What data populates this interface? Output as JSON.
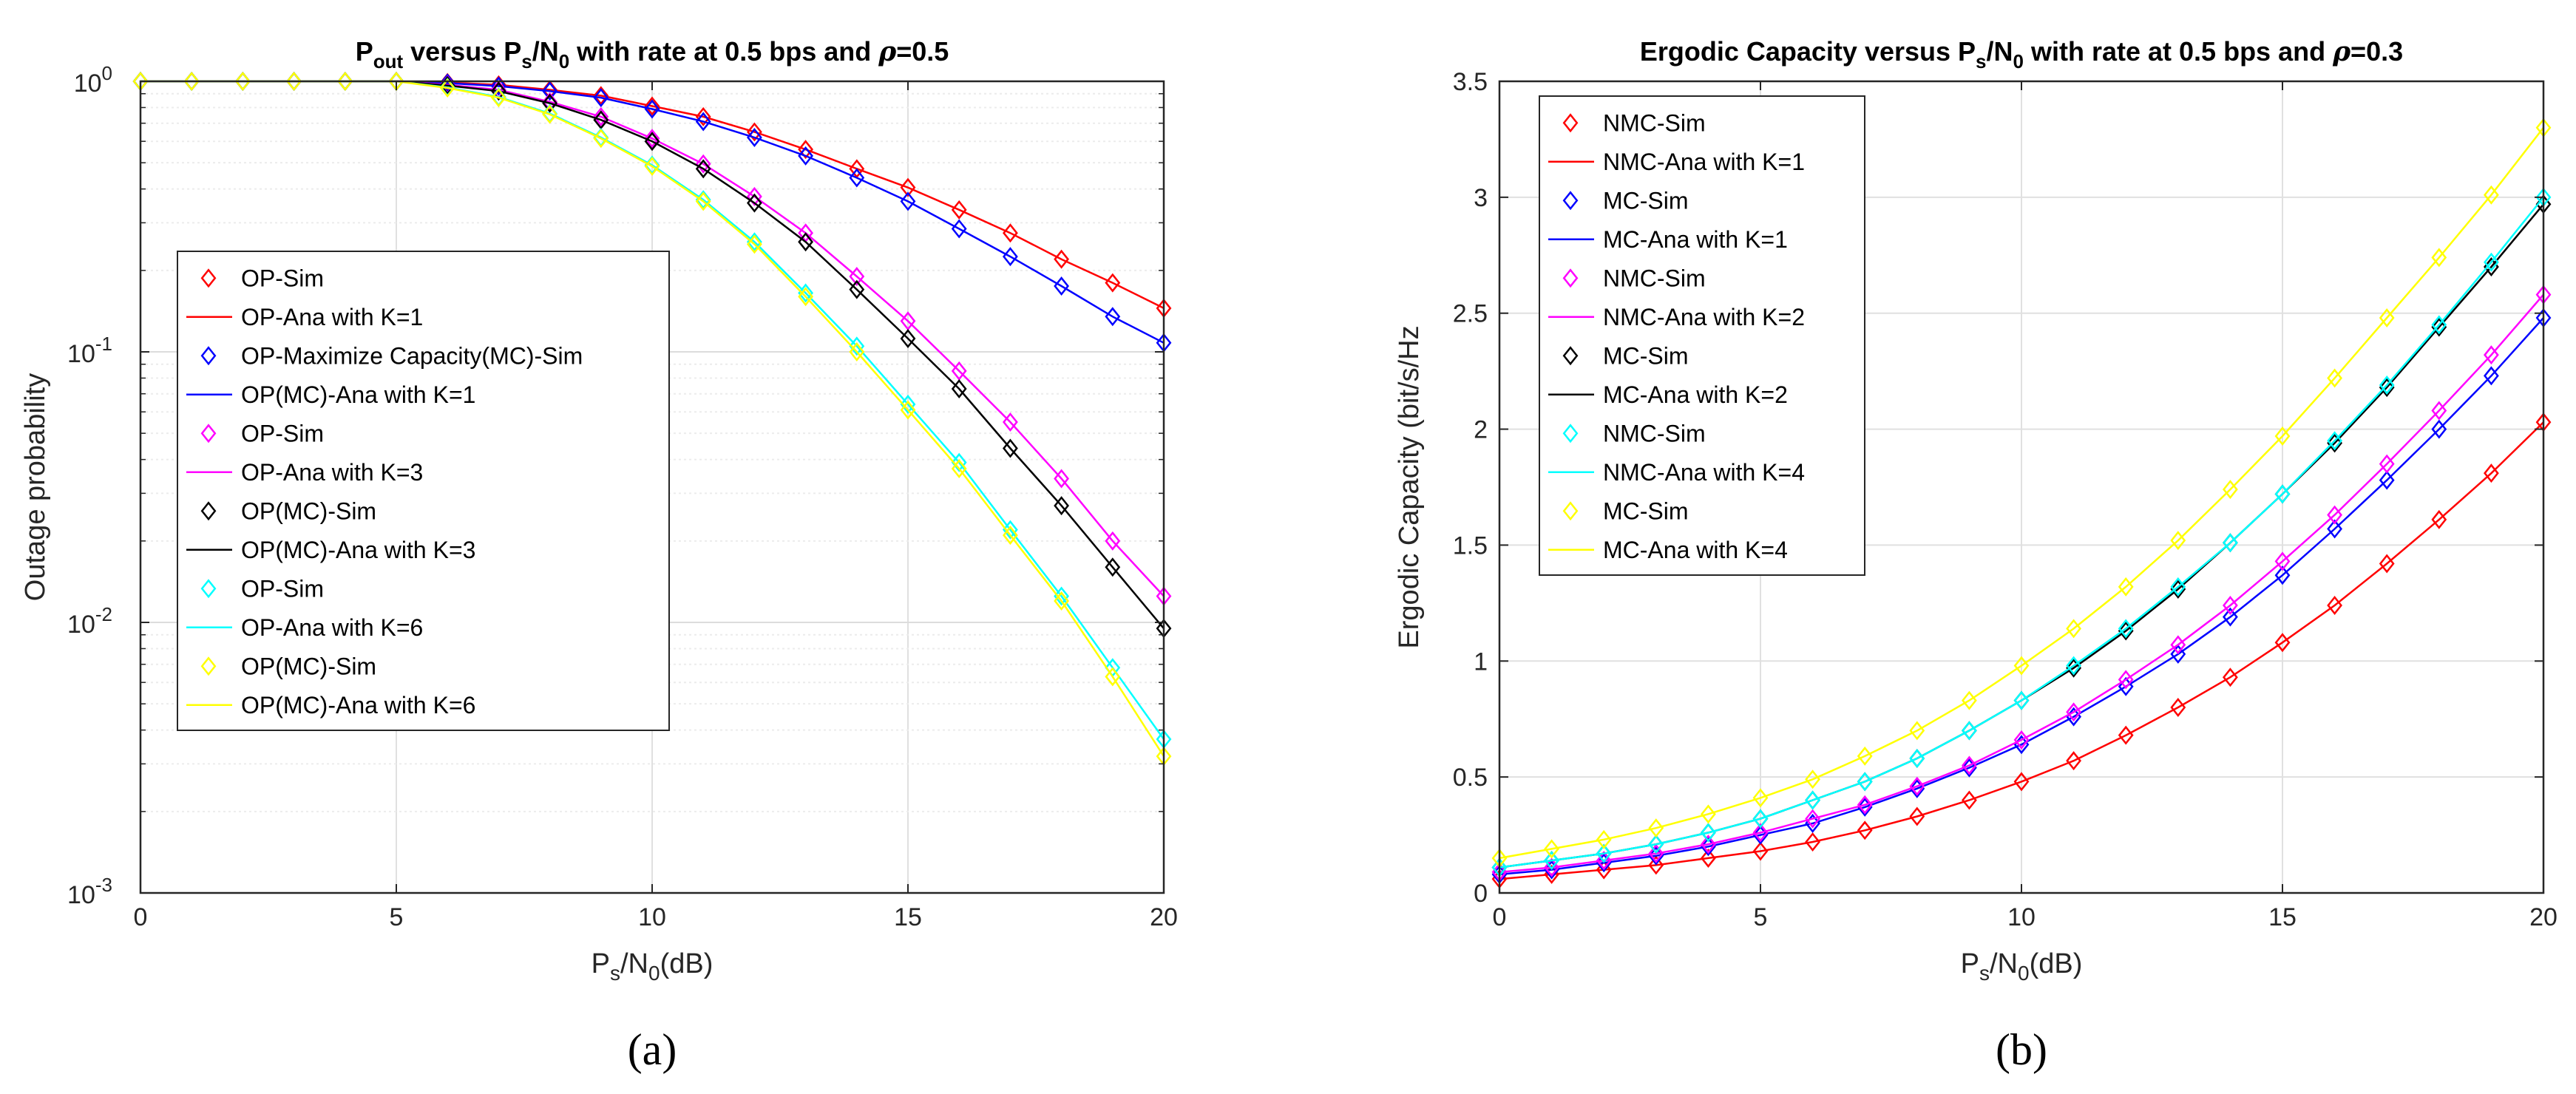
{
  "chart_data": [
    {
      "type": "line",
      "panel_label": "(a)",
      "title": {
        "main": "P",
        "sub1": "out",
        "mid": " versus P",
        "sub2": "s",
        "mid2": "/N",
        "sub3": "0",
        "tail": " with rate at 0.5 bps and ",
        "greek": "ρ",
        "value": "=0.5"
      },
      "xlabel": {
        "main": "P",
        "sub1": "s",
        "mid": "/N",
        "sub2": "0",
        "tail": "(dB)"
      },
      "ylabel": "Outage probability",
      "yscale": "log",
      "xlim": [
        0,
        20
      ],
      "ylim": [
        0.001,
        1
      ],
      "xticks": [
        "0",
        "5",
        "10",
        "15",
        "20"
      ],
      "yticks": [
        {
          "value": 1,
          "base": "10",
          "exp": "0"
        },
        {
          "value": 0.1,
          "base": "10",
          "exp": "-1"
        },
        {
          "value": 0.01,
          "base": "10",
          "exp": "-2"
        },
        {
          "value": 0.001,
          "base": "10",
          "exp": "-3"
        }
      ],
      "grid": true,
      "legend_position": "left-middle",
      "x": [
        0,
        1,
        2,
        3,
        4,
        5,
        6,
        7,
        8,
        9,
        10,
        11,
        12,
        13,
        14,
        15,
        16,
        17,
        18,
        19,
        20
      ],
      "series": [
        {
          "label_sim": "OP-Sim",
          "label_ana": "OP-Ana with K=1",
          "color": "#ff0000",
          "values": [
            1,
            1,
            1,
            1,
            1,
            1,
            0.99,
            0.97,
            0.93,
            0.885,
            0.81,
            0.74,
            0.65,
            0.56,
            0.475,
            0.405,
            0.335,
            0.275,
            0.22,
            0.18,
            0.145
          ]
        },
        {
          "label_sim": "OP-Maximize Capacity(MC)-Sim",
          "label_ana": "OP(MC)-Ana with K=1",
          "color": "#0000ff",
          "values": [
            1,
            1,
            1,
            1,
            1,
            1,
            0.985,
            0.96,
            0.92,
            0.87,
            0.79,
            0.71,
            0.62,
            0.53,
            0.44,
            0.36,
            0.285,
            0.225,
            0.175,
            0.135,
            0.108
          ]
        },
        {
          "label_sim": "OP-Sim",
          "label_ana": "OP-Ana with K=3",
          "color": "#ff00ff",
          "values": [
            1,
            1,
            1,
            1,
            1,
            1,
            0.97,
            0.93,
            0.84,
            0.74,
            0.615,
            0.495,
            0.375,
            0.275,
            0.19,
            0.13,
            0.085,
            0.055,
            0.034,
            0.02,
            0.0125
          ]
        },
        {
          "label_sim": "OP(MC)-Sim",
          "label_ana": "OP(MC)-Ana with K=3",
          "color": "#000000",
          "values": [
            1,
            1,
            1,
            1,
            1,
            1,
            0.965,
            0.92,
            0.83,
            0.72,
            0.6,
            0.475,
            0.355,
            0.255,
            0.17,
            0.112,
            0.073,
            0.044,
            0.027,
            0.016,
            0.0095
          ]
        },
        {
          "label_sim": "OP-Sim",
          "label_ana": "OP-Ana with K=6",
          "color": "#00ffff",
          "values": [
            1,
            1,
            1,
            1,
            1,
            1,
            0.95,
            0.875,
            0.76,
            0.62,
            0.49,
            0.365,
            0.255,
            0.165,
            0.105,
            0.064,
            0.039,
            0.022,
            0.0125,
            0.0068,
            0.0037
          ]
        },
        {
          "label_sim": "OP(MC)-Sim",
          "label_ana": "OP(MC)-Ana with K=6",
          "color": "#ffff00",
          "values": [
            1,
            1,
            1,
            1,
            1,
            1,
            0.945,
            0.87,
            0.755,
            0.615,
            0.485,
            0.36,
            0.25,
            0.16,
            0.1,
            0.061,
            0.037,
            0.021,
            0.012,
            0.0063,
            0.0032
          ]
        }
      ]
    },
    {
      "type": "line",
      "panel_label": "(b)",
      "title": {
        "main": "Ergodic Capacity versus P",
        "sub1": "s",
        "mid": "/N",
        "sub2": "0",
        "tail": " with rate at 0.5 bps and ",
        "greek": "ρ",
        "value": "=0.3"
      },
      "xlabel": {
        "main": "P",
        "sub1": "s",
        "mid": "/N",
        "sub2": "0",
        "tail": "(dB)"
      },
      "ylabel": "Ergodic Capacity (bit/s/Hz",
      "yscale": "linear",
      "xlim": [
        0,
        20
      ],
      "ylim": [
        0,
        3.5
      ],
      "xticks": [
        "0",
        "5",
        "10",
        "15",
        "20"
      ],
      "yticks": [
        "0",
        "0.5",
        "1",
        "1.5",
        "2",
        "2.5",
        "3",
        "3.5"
      ],
      "grid": true,
      "legend_position": "top-left",
      "x": [
        0,
        1,
        2,
        3,
        4,
        5,
        6,
        7,
        8,
        9,
        10,
        11,
        12,
        13,
        14,
        15,
        16,
        17,
        18,
        19,
        20
      ],
      "series": [
        {
          "label_sim": "NMC-Sim",
          "label_ana": "NMC-Ana with K=1",
          "color": "#ff0000",
          "values": [
            0.06,
            0.08,
            0.1,
            0.12,
            0.15,
            0.18,
            0.22,
            0.27,
            0.33,
            0.4,
            0.48,
            0.57,
            0.68,
            0.8,
            0.93,
            1.08,
            1.24,
            1.42,
            1.61,
            1.81,
            2.03
          ]
        },
        {
          "label_sim": "MC-Sim",
          "label_ana": "MC-Ana with K=1",
          "color": "#0000ff",
          "values": [
            0.08,
            0.1,
            0.13,
            0.16,
            0.2,
            0.25,
            0.3,
            0.37,
            0.45,
            0.54,
            0.64,
            0.76,
            0.89,
            1.03,
            1.19,
            1.37,
            1.57,
            1.78,
            2.0,
            2.23,
            2.48
          ]
        },
        {
          "label_sim": "NMC-Sim",
          "label_ana": "NMC-Ana with K=2",
          "color": "#ff00ff",
          "values": [
            0.09,
            0.11,
            0.14,
            0.17,
            0.21,
            0.26,
            0.32,
            0.38,
            0.46,
            0.55,
            0.66,
            0.78,
            0.92,
            1.07,
            1.24,
            1.43,
            1.63,
            1.85,
            2.08,
            2.32,
            2.58
          ]
        },
        {
          "label_sim": "MC-Sim",
          "label_ana": "MC-Ana with K=2",
          "color": "#000000",
          "values": [
            0.11,
            0.14,
            0.17,
            0.21,
            0.26,
            0.32,
            0.4,
            0.48,
            0.58,
            0.7,
            0.83,
            0.97,
            1.13,
            1.31,
            1.51,
            1.72,
            1.94,
            2.18,
            2.44,
            2.7,
            2.97
          ]
        },
        {
          "label_sim": "NMC-Sim",
          "label_ana": "NMC-Ana with K=4",
          "color": "#00ffff",
          "values": [
            0.11,
            0.14,
            0.17,
            0.21,
            0.26,
            0.32,
            0.4,
            0.48,
            0.58,
            0.7,
            0.83,
            0.98,
            1.14,
            1.32,
            1.51,
            1.72,
            1.95,
            2.19,
            2.45,
            2.72,
            3.0
          ]
        },
        {
          "label_sim": "MC-Sim",
          "label_ana": "MC-Ana with K=4",
          "color": "#ffff00",
          "values": [
            0.15,
            0.19,
            0.23,
            0.28,
            0.34,
            0.41,
            0.49,
            0.59,
            0.7,
            0.83,
            0.98,
            1.14,
            1.32,
            1.52,
            1.74,
            1.97,
            2.22,
            2.48,
            2.74,
            3.01,
            3.3
          ]
        }
      ]
    }
  ]
}
